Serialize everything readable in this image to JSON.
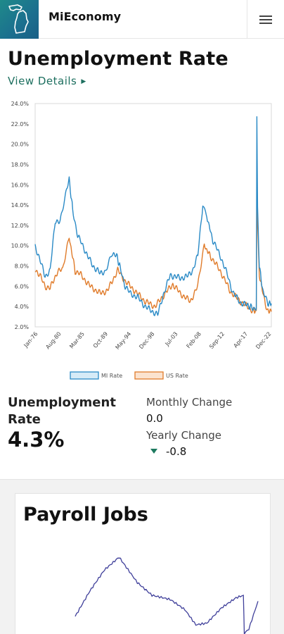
{
  "header": {
    "app_name": "MiEconomy",
    "logo_icon": "michigan-state-icon",
    "menu_icon": "hamburger-menu-icon"
  },
  "unemployment": {
    "title": "Unemployment Rate",
    "view_details": "View Details",
    "stat_label": "Unemployment Rate",
    "stat_value": "4.3%",
    "monthly_change_label": "Monthly Change",
    "monthly_change_value": "0.0",
    "yearly_change_label": "Yearly Change",
    "yearly_change_value": "-0.8",
    "yearly_change_direction": "down"
  },
  "payroll": {
    "title": "Payroll Jobs"
  },
  "colors": {
    "mi_rate": "#2a8ac6",
    "us_rate": "#e07b2a",
    "accent_green": "#1d6f5f",
    "payroll_line": "#3f3f9a"
  },
  "chart_data": [
    {
      "type": "line",
      "title": "",
      "xlabel": "",
      "ylabel": "",
      "ylim": [
        2.0,
        24.0
      ],
      "y_ticks": [
        "2.0%",
        "4.0%",
        "6.0%",
        "8.0%",
        "10.0%",
        "12.0%",
        "14.0%",
        "16.0%",
        "18.0%",
        "20.0%",
        "22.0%",
        "24.0%"
      ],
      "x_ticks": [
        "Jan-76",
        "Aug-80",
        "Mar-85",
        "Oct-89",
        "May-94",
        "Dec-98",
        "Jul-03",
        "Feb-08",
        "Sep-12",
        "Apr-17",
        "Dec-22"
      ],
      "x_range": [
        1976.0,
        2023.2
      ],
      "legend": "bottom-center",
      "grid": false,
      "series": [
        {
          "name": "MI Rate",
          "color": "#2a8ac6",
          "points": [
            [
              1976.0,
              10.0
            ],
            [
              1977.0,
              8.5
            ],
            [
              1978.0,
              7.0
            ],
            [
              1979.0,
              7.5
            ],
            [
              1980.0,
              12.5
            ],
            [
              1981.0,
              12.3
            ],
            [
              1982.3,
              15.5
            ],
            [
              1982.8,
              16.5
            ],
            [
              1983.5,
              13.5
            ],
            [
              1984.5,
              11.0
            ],
            [
              1985.5,
              10.0
            ],
            [
              1986.5,
              9.0
            ],
            [
              1987.5,
              8.0
            ],
            [
              1988.5,
              7.6
            ],
            [
              1989.0,
              7.2
            ],
            [
              1990.0,
              7.5
            ],
            [
              1991.3,
              9.3
            ],
            [
              1992.3,
              9.0
            ],
            [
              1993.0,
              7.8
            ],
            [
              1994.0,
              6.0
            ],
            [
              1995.0,
              5.3
            ],
            [
              1996.5,
              4.9
            ],
            [
              1998.0,
              4.0
            ],
            [
              1999.5,
              3.5
            ],
            [
              2000.5,
              3.2
            ],
            [
              2001.5,
              5.0
            ],
            [
              2003.0,
              7.1
            ],
            [
              2005.0,
              6.8
            ],
            [
              2006.5,
              7.0
            ],
            [
              2007.5,
              7.6
            ],
            [
              2008.5,
              9.0
            ],
            [
              2009.5,
              14.1
            ],
            [
              2010.3,
              12.9
            ],
            [
              2011.5,
              10.5
            ],
            [
              2013.0,
              9.0
            ],
            [
              2014.5,
              7.0
            ],
            [
              2015.5,
              5.4
            ],
            [
              2017.0,
              4.4
            ],
            [
              2018.5,
              4.1
            ],
            [
              2019.7,
              3.8
            ],
            [
              2020.2,
              3.8
            ],
            [
              2020.3,
              22.7
            ],
            [
              2020.45,
              13.5
            ],
            [
              2020.8,
              8.0
            ],
            [
              2021.5,
              5.5
            ],
            [
              2022.5,
              4.3
            ],
            [
              2023.2,
              4.3
            ]
          ]
        },
        {
          "name": "US Rate",
          "color": "#e07b2a",
          "points": [
            [
              1976.0,
              7.7
            ],
            [
              1977.0,
              7.0
            ],
            [
              1978.0,
              6.0
            ],
            [
              1979.0,
              5.8
            ],
            [
              1980.5,
              7.5
            ],
            [
              1981.5,
              7.6
            ],
            [
              1982.8,
              10.8
            ],
            [
              1984.0,
              7.5
            ],
            [
              1985.0,
              7.2
            ],
            [
              1987.0,
              6.0
            ],
            [
              1989.0,
              5.3
            ],
            [
              1990.5,
              5.6
            ],
            [
              1992.5,
              7.6
            ],
            [
              1994.0,
              6.5
            ],
            [
              1996.0,
              5.5
            ],
            [
              1998.0,
              4.5
            ],
            [
              2000.0,
              4.0
            ],
            [
              2001.5,
              5.0
            ],
            [
              2003.5,
              6.2
            ],
            [
              2005.0,
              5.3
            ],
            [
              2007.0,
              4.5
            ],
            [
              2008.5,
              6.0
            ],
            [
              2009.8,
              10.0
            ],
            [
              2011.0,
              9.0
            ],
            [
              2013.0,
              7.5
            ],
            [
              2015.0,
              5.5
            ],
            [
              2017.0,
              4.5
            ],
            [
              2019.5,
              3.6
            ],
            [
              2020.2,
              3.6
            ],
            [
              2020.3,
              14.7
            ],
            [
              2020.8,
              7.0
            ],
            [
              2021.5,
              5.5
            ],
            [
              2022.0,
              4.0
            ],
            [
              2022.5,
              3.6
            ],
            [
              2023.2,
              3.5
            ]
          ]
        }
      ]
    },
    {
      "type": "line",
      "title": "",
      "grid": false,
      "series": [
        {
          "name": "",
          "color": "#3f3f9a",
          "points": [
            [
              0.0,
              30
            ],
            [
              0.08,
              60
            ],
            [
              0.16,
              85
            ],
            [
              0.24,
              100
            ],
            [
              0.28,
              88
            ],
            [
              0.34,
              70
            ],
            [
              0.42,
              55
            ],
            [
              0.52,
              50
            ],
            [
              0.6,
              38
            ],
            [
              0.66,
              20
            ],
            [
              0.72,
              22
            ],
            [
              0.8,
              40
            ],
            [
              0.88,
              52
            ],
            [
              0.92,
              55
            ],
            [
              0.925,
              10
            ],
            [
              0.95,
              15
            ],
            [
              1.0,
              48
            ]
          ]
        }
      ]
    }
  ]
}
